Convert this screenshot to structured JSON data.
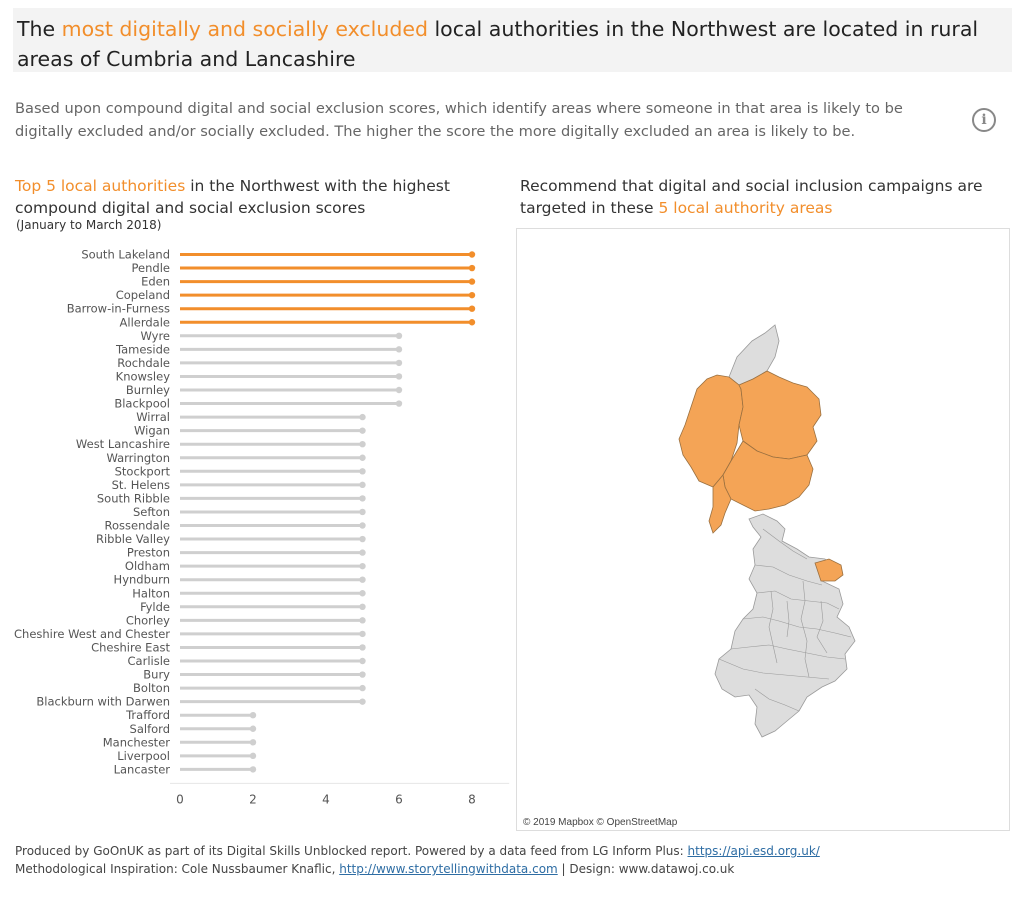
{
  "title": {
    "before": "The ",
    "highlight": "most digitally and socially excluded",
    "after": " local authorities in the Northwest are located in rural areas of Cumbria and Lancashire"
  },
  "description": "Based upon compound digital and social exclusion scores, which identify areas where someone in that area is likely to be digitally excluded and/or socially excluded.  The higher the score the more digitally excluded an area is likely to be.",
  "info_icon": "info-circle-icon",
  "chart_heading": {
    "highlight": "Top 5 local authorities",
    "middle": " in the Northwest with the highest compound digital and social exclusion ",
    "end": "scores"
  },
  "chart_subheading": "(January to March 2018)",
  "map_heading": {
    "before": "Recommend that digital and social inclusion campaigns are targeted in these ",
    "highlight": "5 local authority areas"
  },
  "map_attribution": "© 2019 Mapbox © OpenStreetMap",
  "footer": {
    "line1_text": "Produced by GoOnUK as part of its Digital Skills Unblocked report. Powered by a data feed from LG Inform Plus: ",
    "line1_link": "https://api.esd.org.uk/",
    "line2_text": "Methodological Inspiration: Cole Nussbaumer Knaflic,  ",
    "line2_link": "http://www.storytellingwithdata.com",
    "line2_after": " | Design: www.datawoj.co.uk"
  },
  "colors": {
    "highlight": "#f28e2b",
    "default": "#cfcfcf",
    "map_highlight": "#f4a456",
    "map_default": "#dddddd"
  },
  "chart_data": {
    "type": "bar",
    "categories": [
      "South Lakeland",
      "Pendle",
      "Eden",
      "Copeland",
      "Barrow-in-Furness",
      "Allerdale",
      "Wyre",
      "Tameside",
      "Rochdale",
      "Knowsley",
      "Burnley",
      "Blackpool",
      "Wirral",
      "Wigan",
      "West Lancashire",
      "Warrington",
      "Stockport",
      "St. Helens",
      "South Ribble",
      "Sefton",
      "Rossendale",
      "Ribble Valley",
      "Preston",
      "Oldham",
      "Hyndburn",
      "Halton",
      "Fylde",
      "Chorley",
      "Cheshire West and Chester",
      "Cheshire East",
      "Carlisle",
      "Bury",
      "Bolton",
      "Blackburn with Darwen",
      "Trafford",
      "Salford",
      "Manchester",
      "Liverpool",
      "Lancaster"
    ],
    "values": [
      8,
      8,
      8,
      8,
      8,
      8,
      6,
      6,
      6,
      6,
      6,
      6,
      5,
      5,
      5,
      5,
      5,
      5,
      5,
      5,
      5,
      5,
      5,
      5,
      5,
      5,
      5,
      5,
      5,
      5,
      5,
      5,
      5,
      5,
      2,
      2,
      2,
      2,
      2
    ],
    "highlighted": [
      "South Lakeland",
      "Pendle",
      "Eden",
      "Copeland",
      "Barrow-in-Furness",
      "Allerdale"
    ],
    "xticks": [
      0,
      2,
      4,
      6,
      8
    ],
    "xlim": [
      0,
      8.8
    ],
    "grid": false
  }
}
